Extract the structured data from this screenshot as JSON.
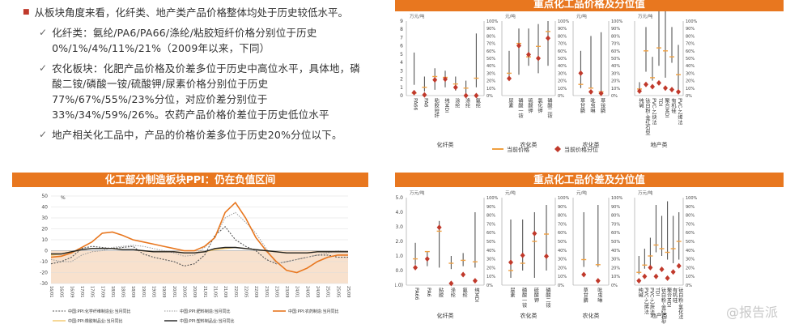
{
  "bullets": {
    "main1": "从板块角度来看，化纤类、地产类产品价格整体均处于历史较低水平。",
    "sub1": "化纤类：氨纶/PA6/PA66/涤纶/粘胶短纤价格分别位于历史0%/1%/4%/11%/21%（2009年以来，下同）",
    "sub2": "农化板块：化肥产品价格及价差多位于历史中高位水平，具体地，磷酸二铵/磷酸一铵/硫酸钾/尿素价格分别位于历史77%/67%/55%/23%分位，对应价差分别位于33%/34%/59%/26%。农药产品价格价差位于历史低位水平",
    "main2": "地产相关化工品中，产品的价格价差多位于历史20%分位以下。"
  },
  "watermark": "@报告派",
  "colors": {
    "accent": "#e8771f",
    "bullet": "#c0392b",
    "diamond": "#c0392b",
    "line_orange": "#f0a040",
    "bar": "#555555"
  },
  "chart_data": [
    {
      "type": "scatter",
      "title": "重点化工品价格及分位值",
      "unit_left": "万元/吨",
      "unit_mid": "元/吨",
      "unit_right": "万元/吨",
      "y_left": {
        "ticks": [
          "9",
          "8",
          "7",
          "6",
          "5",
          "4",
          "3",
          "2",
          "1",
          "0"
        ]
      },
      "y_right": {
        "ticks": [
          "100%",
          "90%",
          "80%",
          "70%",
          "60%",
          "50%",
          "40%",
          "30%",
          "20%",
          "10%",
          "0%"
        ]
      },
      "groups": [
        {
          "name": "化纤类",
          "ymax": 9,
          "items": [
            {
              "label": "PA66",
              "lo": 1.3,
              "hi": 5.2,
              "price": 0.3,
              "pct": 0.04
            },
            {
              "label": "PA6",
              "lo": 0.5,
              "hi": 2.3,
              "price": 1.0,
              "pct": 0.01
            },
            {
              "label": "粘胶短纤",
              "lo": 0.7,
              "hi": 3.3,
              "price": 2.3,
              "pct": 0.21
            },
            {
              "label": "纯MDI",
              "lo": 1.0,
              "hi": 3.0,
              "price": 2.2,
              "pct": 0.22
            },
            {
              "label": "涂纶",
              "lo": 0.6,
              "hi": 2.3,
              "price": 1.4,
              "pct": 0.11
            },
            {
              "label": "涤纶",
              "lo": 0.3,
              "hi": 1.8,
              "price": 0.9,
              "pct": 0.0
            },
            {
              "label": "氨纶",
              "lo": 1.0,
              "hi": 7.5,
              "price": 2.1,
              "pct": 0.0
            }
          ]
        },
        {
          "name": "农化类",
          "ymax": 5000,
          "items": [
            {
              "label": "尿素",
              "lo": 1100,
              "hi": 3000,
              "price": 1500,
              "pct": 0.23
            },
            {
              "label": "磷酸一铵",
              "lo": 1400,
              "hi": 4500,
              "price": 3500,
              "pct": 0.67
            },
            {
              "label": "硫酸钾",
              "lo": 2000,
              "hi": 4500,
              "price": 2600,
              "pct": 0.55
            },
            {
              "label": "氯化钾",
              "lo": 1500,
              "hi": 4800,
              "price": 3300,
              "pct": 0.5
            },
            {
              "label": "磷酸二铵",
              "lo": 2000,
              "hi": 5000,
              "price": 4300,
              "pct": 0.77
            }
          ]
        },
        {
          "name": "农化类",
          "ymax": 20,
          "items": [
            {
              "label": "草甘膦",
              "lo": 2,
              "hi": 12,
              "price": 3,
              "pct": 0.3
            },
            {
              "label": "吡虫啉",
              "lo": 2,
              "hi": 16,
              "price": 2,
              "pct": 0.05
            },
            {
              "label": "草铵膦",
              "lo": 1,
              "hi": 17,
              "price": 1,
              "pct": 0.03
            }
          ]
        },
        {
          "name": "地产类",
          "ymax": 2.5,
          "items": [
            {
              "label": "纯碱",
              "lo": 0.15,
              "hi": 0.45,
              "price": 0.22,
              "pct": 0.06
            },
            {
              "label": "钛白粉-金红石型",
              "lo": 0.8,
              "hi": 2.3,
              "price": 1.5,
              "pct": 0.15
            },
            {
              "label": "PVC-乙炔法",
              "lo": 0.5,
              "hi": 1.3,
              "price": 0.6,
              "pct": 0.12
            },
            {
              "label": "TDI",
              "lo": 1.0,
              "hi": 3.0,
              "price": 1.6,
              "pct": 0.17
            },
            {
              "label": "聚合MDI",
              "lo": 0.6,
              "hi": 3.7,
              "price": 1.5,
              "pct": 0.1
            },
            {
              "label": "有机硅",
              "lo": 1.1,
              "hi": 2.3,
              "price": 1.3,
              "pct": 0.08
            },
            {
              "label": "PVC-乙烯法",
              "lo": 0.2,
              "hi": 1.7,
              "price": 0.7,
              "pct": 0.05
            }
          ]
        }
      ],
      "legend": [
        "当前价格",
        "当前价格分位"
      ]
    },
    {
      "type": "line",
      "title": "化工部分制造板块PPI：仍在负值区间",
      "unit": "%",
      "ylim": [
        -30,
        50
      ],
      "yticks": [
        "50",
        "40",
        "30",
        "20",
        "10",
        "0",
        "-10",
        "-20",
        "-30"
      ],
      "x": [
        "16/01",
        "16/05",
        "16/09",
        "17/01",
        "17/05",
        "17/09",
        "18/01",
        "18/05",
        "18/09",
        "19/01",
        "19/05",
        "19/09",
        "20/01",
        "20/05",
        "20/09",
        "21/01",
        "21/05",
        "21/09",
        "22/01",
        "22/05",
        "22/09",
        "23/01",
        "23/05",
        "23/09",
        "24/01",
        "24/05",
        "24/09",
        "25/01",
        "25/05",
        "25/09"
      ],
      "series": [
        {
          "name": "中国:PPI:化学纤维制造业:当月同比",
          "values": [
            -12,
            -10,
            -6,
            2,
            4,
            3,
            2,
            3,
            4,
            -3,
            -6,
            -8,
            -10,
            -14,
            -12,
            -4,
            14,
            22,
            10,
            4,
            0,
            -8,
            -12,
            -10,
            -8,
            -6,
            -4,
            -4,
            -6,
            -6
          ]
        },
        {
          "name": "中国:PPI:肥料制造:当月同比",
          "values": [
            -8,
            -10,
            -10,
            -4,
            -1,
            0,
            3,
            4,
            5,
            4,
            2,
            0,
            -2,
            -5,
            -4,
            3,
            12,
            30,
            35,
            26,
            16,
            2,
            -12,
            -10,
            -8,
            -6,
            -4,
            -2,
            0,
            -1
          ]
        },
        {
          "name": "中国:PPI:农药制造:当月同比",
          "values": [
            -6,
            -5,
            -2,
            3,
            8,
            16,
            17,
            14,
            10,
            8,
            6,
            4,
            2,
            0,
            0,
            4,
            12,
            35,
            44,
            30,
            12,
            0,
            -10,
            -18,
            -20,
            -16,
            -10,
            -6,
            -4,
            -4
          ]
        },
        {
          "name": "中国:PPI:橡胶制品业:当月同比",
          "values": [
            -4,
            -3,
            -1,
            1,
            2,
            2,
            2,
            1,
            1,
            0,
            -1,
            -1,
            -1,
            -2,
            -2,
            -1,
            1,
            2,
            3,
            2,
            1,
            0,
            -1,
            -2,
            -2,
            -2,
            -1,
            -1,
            -1,
            -1
          ]
        },
        {
          "name": "中国:PPI:塑料制品业:当月同比",
          "values": [
            -3,
            -3,
            -1,
            1,
            2,
            2,
            2,
            1,
            1,
            0,
            -1,
            -1,
            -1,
            -2,
            -2,
            -1,
            2,
            3,
            3,
            2,
            1,
            0,
            -1,
            -2,
            -2,
            -2,
            -1,
            -1,
            -1,
            -1
          ]
        }
      ]
    },
    {
      "type": "scatter",
      "title": "重点化工品价差及分位值",
      "unit_left": "万元/吨",
      "unit_mid": "元/吨",
      "unit_right": "万元/吨",
      "y_left": {
        "ticks": [
          "5.0",
          "4.0",
          "3.0",
          "2.0",
          "1.0",
          "0.0",
          "(1.0)"
        ]
      },
      "y_right": {
        "ticks": [
          "100%",
          "90%",
          "80%",
          "70%",
          "60%",
          "50%",
          "40%",
          "30%",
          "20%",
          "10%",
          "0%"
        ]
      },
      "groups": [
        {
          "name": "化纤类",
          "ymax": 5.0,
          "ymin": -1.0,
          "items": [
            {
              "label": "PA66",
              "lo": 0.4,
              "hi": 1.9,
              "price": 0.8,
              "pct": 0.2
            },
            {
              "label": "PA6",
              "lo": 0.3,
              "hi": 1.3,
              "price": 1.3,
              "pct": 0.3
            },
            {
              "label": "粘胶",
              "lo": 0.2,
              "hi": 3.4,
              "price": 2.7,
              "pct": 0.66
            },
            {
              "label": "涤纶",
              "lo": 0.1,
              "hi": 1.0,
              "price": 0.5,
              "pct": 0.02
            },
            {
              "label": "氨纶",
              "lo": 0.3,
              "hi": 1.2,
              "price": 0.7,
              "pct": 0.12
            },
            {
              "label": "纯MDI",
              "lo": 0.2,
              "hi": 4.0,
              "price": 0.6,
              "pct": 0.05
            }
          ]
        },
        {
          "name": "农化类",
          "ymax": 1000,
          "ymin": -200,
          "items": [
            {
              "label": "尿素",
              "lo": -100,
              "hi": 700,
              "price": 0,
              "pct": 0.26
            },
            {
              "label": "磷酸一铵",
              "lo": 0,
              "hi": 700,
              "price": 100,
              "pct": 0.34
            },
            {
              "label": "硫酸钾",
              "lo": -100,
              "hi": 800,
              "price": 400,
              "pct": 0.59
            },
            {
              "label": "磷酸二铵",
              "lo": 0,
              "hi": 900,
              "price": 500,
              "pct": 0.33
            }
          ]
        },
        {
          "name": "农化类",
          "ymax": 10,
          "ymin": -2,
          "items": [
            {
              "label": "草甘膦",
              "lo": 0.5,
              "hi": 8,
              "price": 1.5,
              "pct": 0.12
            },
            {
              "label": "吡虫啉",
              "lo": 0.5,
              "hi": 9,
              "price": 0.8,
              "pct": 0.05
            }
          ]
        },
        {
          "name": "地产类",
          "ymax": 2.0,
          "ymin": -0.4,
          "items": [
            {
              "label": "纯碱",
              "lo": -0.1,
              "hi": 0.4,
              "price": -0.05,
              "pct": 0.05
            },
            {
              "label": "PVC-乙烯法",
              "lo": 0.05,
              "hi": 0.6,
              "price": 0.15,
              "pct": 0.1
            },
            {
              "label": "PVC-乙炔法",
              "lo": 0.1,
              "hi": 0.9,
              "price": 0.4,
              "pct": 0.2
            },
            {
              "label": "TDI",
              "lo": 0.5,
              "hi": 1.8,
              "price": 0.7,
              "pct": 0.1
            },
            {
              "label": "钛白粉-金红石型",
              "lo": 0.4,
              "hi": 1.5,
              "price": 0.6,
              "pct": 0.18
            },
            {
              "label": "聚合MDI",
              "lo": 0.3,
              "hi": 1.9,
              "price": 0.5,
              "pct": 0.08
            },
            {
              "label": "有机硅",
              "lo": 0.2,
              "hi": 1.5,
              "price": 0.6,
              "pct": 0.15
            },
            {
              "label": "钛白粉-氯化法",
              "lo": 0.3,
              "hi": 1.6,
              "price": 0.8,
              "pct": 0.22
            }
          ]
        }
      ]
    }
  ]
}
